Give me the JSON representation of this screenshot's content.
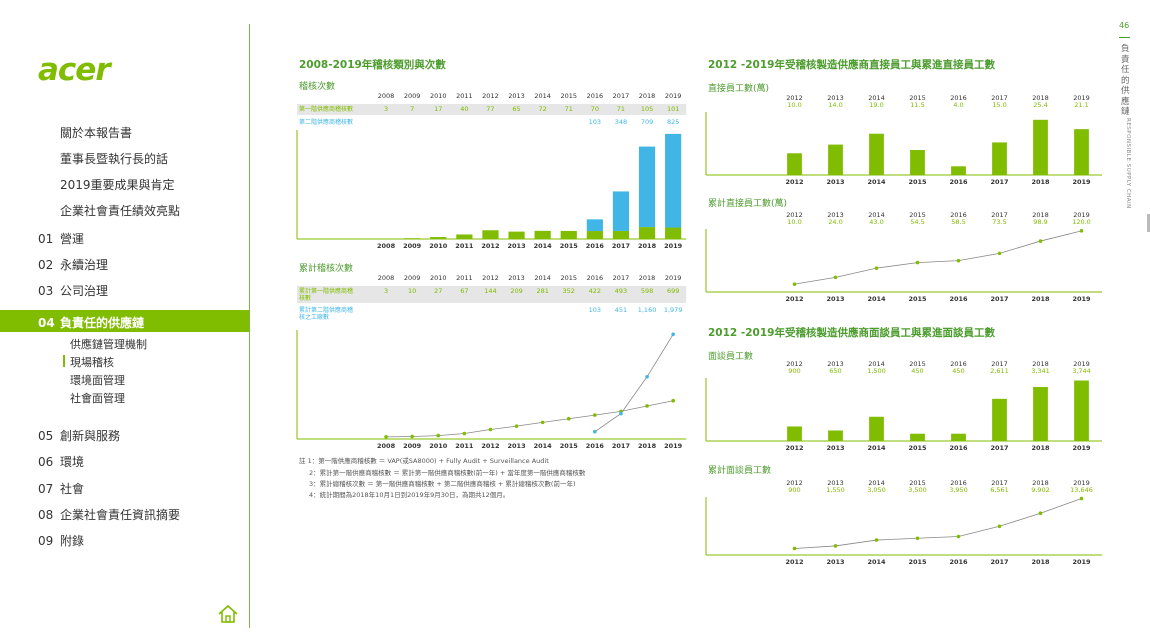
{
  "sidebar": {
    "logo": "acer",
    "items_top": [
      {
        "label": "關於本報告書"
      },
      {
        "label": "董事長暨執行長的話"
      },
      {
        "label": "2019重要成果與肯定"
      },
      {
        "label": "企業社會責任績效亮點"
      }
    ],
    "items_numbered_a": [
      {
        "num": "01",
        "label": "營運"
      },
      {
        "num": "02",
        "label": "永續治理"
      },
      {
        "num": "03",
        "label": "公司治理"
      }
    ],
    "active": {
      "num": "04",
      "label": "負責任的供應鏈"
    },
    "sub_items": [
      {
        "label": "供應鏈管理機制"
      },
      {
        "label": "現場稽核"
      },
      {
        "label": "環境面管理"
      },
      {
        "label": "社會面管理"
      }
    ],
    "items_numbered_b": [
      {
        "num": "05",
        "label": "創新與服務"
      },
      {
        "num": "06",
        "label": "環境"
      },
      {
        "num": "07",
        "label": "社會"
      },
      {
        "num": "08",
        "label": "企業社會責任資訊摘要"
      },
      {
        "num": "09",
        "label": "附錄"
      }
    ]
  },
  "page": {
    "number": "46",
    "section_vertical": "負責任的供應鏈",
    "section_en": "RESPONSIBLE SUPPLY CHAIN"
  },
  "colors": {
    "green": "#80bc00",
    "blue": "#41b6e6",
    "title_green": "#4c9c2e"
  },
  "chart_data": [
    {
      "id": "audit-count",
      "type": "bar",
      "title": "2008-2019年稽核類別與次數",
      "subtitle": "稽核次數",
      "x": [
        "2008",
        "2009",
        "2010",
        "2011",
        "2012",
        "2013",
        "2014",
        "2015",
        "2016",
        "2017",
        "2018",
        "2019"
      ],
      "series": [
        {
          "name": "第一階供應商稽核數",
          "values": [
            3,
            7,
            17,
            40,
            77,
            65,
            72,
            71,
            70,
            71,
            105,
            101
          ],
          "labels": [
            "3",
            "7",
            "17",
            "40",
            "77",
            "65",
            "72",
            "71",
            "70",
            "71",
            "105",
            "101"
          ]
        },
        {
          "name": "第二階供應商稽核數",
          "values": [
            0,
            0,
            0,
            0,
            0,
            0,
            0,
            0,
            103,
            348,
            709,
            825
          ],
          "labels": [
            "",
            "",
            "",
            "",
            "",
            "",
            "",
            "",
            "103",
            "348",
            "709",
            "825"
          ]
        }
      ],
      "stacked": true,
      "ylim": [
        0,
        960
      ]
    },
    {
      "id": "audit-cumulative",
      "type": "line",
      "subtitle": "累計稽核次數",
      "x": [
        "2008",
        "2009",
        "2010",
        "2011",
        "2012",
        "2013",
        "2014",
        "2015",
        "2016",
        "2017",
        "2018",
        "2019"
      ],
      "series": [
        {
          "name": "累計第一階供應商稽核數",
          "values": [
            3,
            10,
            27,
            67,
            144,
            209,
            281,
            352,
            422,
            493,
            598,
            699
          ],
          "labels": [
            "3",
            "10",
            "27",
            "67",
            "144",
            "209",
            "281",
            "352",
            "422",
            "493",
            "598",
            "699"
          ]
        },
        {
          "name": "累計第二階供應商稽核之工廠數",
          "values": [
            null,
            null,
            null,
            null,
            null,
            null,
            null,
            null,
            103,
            451,
            1160,
            1979
          ],
          "labels": [
            "",
            "",
            "",
            "",
            "",
            "",
            "",
            "",
            "103",
            "451",
            "1,160",
            "1,979"
          ]
        }
      ],
      "ylim": [
        0,
        2100
      ]
    },
    {
      "id": "direct-workers",
      "type": "bar",
      "title": "2012 -2019年受稽核製造供應商直接員工與累進直接員工數",
      "subtitle": "直接員工數(萬)",
      "x": [
        "2012",
        "2013",
        "2014",
        "2015",
        "2016",
        "2017",
        "2018",
        "2019"
      ],
      "values": [
        10.0,
        14.0,
        19.0,
        11.5,
        4.0,
        15.0,
        25.4,
        21.1
      ],
      "labels": [
        "10.0",
        "14.0",
        "19.0",
        "11.5",
        "4.0",
        "15.0",
        "25.4",
        "21.1"
      ],
      "ylim": [
        0,
        29
      ]
    },
    {
      "id": "direct-workers-cumulative",
      "type": "line",
      "subtitle": "累計直接員工數(萬)",
      "x": [
        "2012",
        "2013",
        "2014",
        "2015",
        "2016",
        "2017",
        "2018",
        "2019"
      ],
      "values": [
        10.0,
        24.0,
        43.0,
        54.5,
        58.5,
        73.5,
        98.9,
        120.0
      ],
      "labels": [
        "10.0",
        "24.0",
        "43.0",
        "54.5",
        "58.5",
        "73.5",
        "98.9",
        "120.0"
      ],
      "ylim": [
        0,
        130
      ]
    },
    {
      "id": "interviewed-workers",
      "type": "bar",
      "title": "2012 -2019年受稽核製造供應商面談員工與累進面談員工數",
      "subtitle": "面談員工數",
      "x": [
        "2012",
        "2013",
        "2014",
        "2015",
        "2016",
        "2017",
        "2018",
        "2019"
      ],
      "values": [
        900,
        650,
        1500,
        450,
        450,
        2611,
        3341,
        3744
      ],
      "labels": [
        "900",
        "650",
        "1,500",
        "450",
        "450",
        "2,611",
        "3,341",
        "3,744"
      ],
      "ylim": [
        0,
        3900
      ]
    },
    {
      "id": "interviewed-workers-cumulative",
      "type": "line",
      "subtitle": "累計面談員工數",
      "x": [
        "2012",
        "2013",
        "2014",
        "2015",
        "2016",
        "2017",
        "2018",
        "2019"
      ],
      "values": [
        900,
        1550,
        3050,
        3500,
        3950,
        6561,
        9902,
        13646
      ],
      "labels": [
        "900",
        "1,550",
        "3,050",
        "3,500",
        "3,950",
        "6,561",
        "9,902",
        "13,646"
      ],
      "ylim": [
        0,
        14800
      ]
    }
  ],
  "notes": [
    "註 1：第一階供應商稽核數 ＝ VAP(或SA8000) + Fully Audit + Surveillance Audit",
    "2：累計第一階供應商稽核數 ＝ 累計第一階供應商稽核數(前一年) + 當年度第一階供應商稽核數",
    "3：累計總稽核次數 ＝ 第一階供應商稽核數 + 第二階供應商稽核 + 累計總稽核次數(前一年)",
    "4：統計期間為2018年10月1日到2019年9月30日，為期共12個月。"
  ]
}
